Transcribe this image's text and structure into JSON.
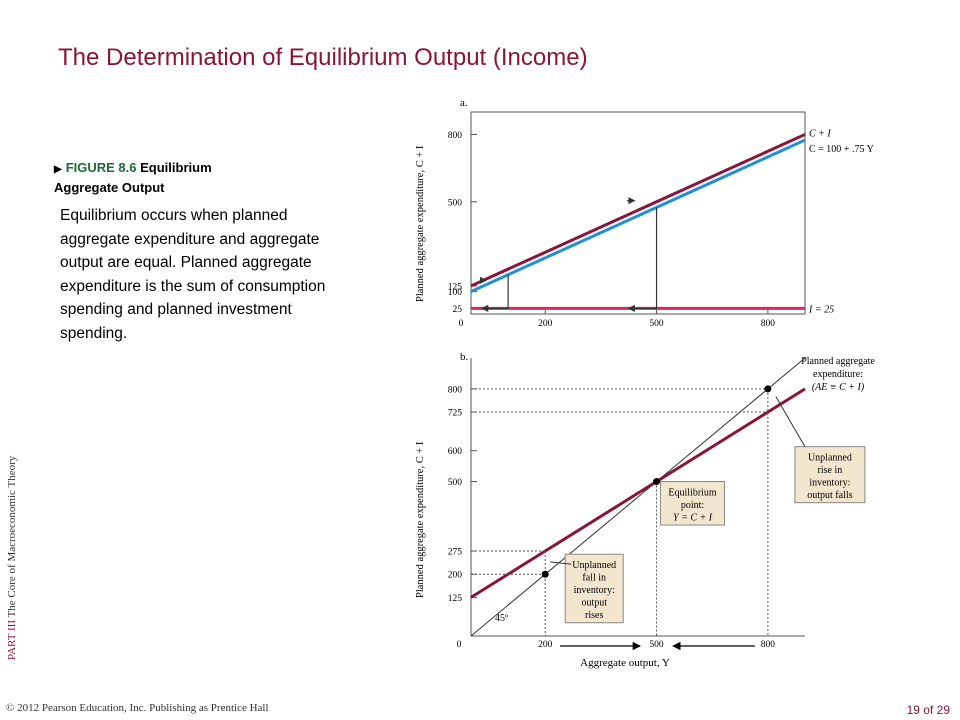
{
  "title": "The Determination of Equilibrium Output (Income)",
  "figure": {
    "arrow": "▶",
    "number": "FIGURE 8.6",
    "name": "Equilibrium",
    "name2": "Aggregate Output"
  },
  "body_text": "Equilibrium occurs when planned aggregate expenditure and aggregate output are equal. Planned aggregate expenditure is the sum of consumption spending and planned investment spending.",
  "sidebar": {
    "part": "PART  III",
    "book": "The Core of Macroeconomic Theory"
  },
  "footer": {
    "copyright": "© 2012 Pearson Education, Inc. Publishing as Prentice Hall",
    "page": "19 of 29"
  },
  "colors": {
    "title": "#8b1538",
    "ci_line": "#8b1538",
    "c_line": "#1f8fd6",
    "i_line": "#e0245e"
  },
  "chart_data": [
    {
      "type": "line",
      "panel_label": "a.",
      "ylabel": "Planned aggregate expenditure, C + I",
      "ylim": [
        0,
        900
      ],
      "xlim": [
        0,
        900
      ],
      "x_ticks": [
        0,
        200,
        500,
        800
      ],
      "y_ticks": [
        "25",
        "100",
        "125",
        "500",
        "800"
      ],
      "x_tick_labels": [
        "0",
        "200",
        "500",
        "800"
      ],
      "series": [
        {
          "name": "C + I",
          "x": [
            0,
            900
          ],
          "y": [
            125,
            800
          ]
        },
        {
          "name": "C = 100 + .75 Y",
          "x": [
            0,
            900
          ],
          "y": [
            100,
            775
          ]
        },
        {
          "name": "I = 25",
          "x": [
            0,
            900
          ],
          "y": [
            25,
            25
          ]
        }
      ]
    },
    {
      "type": "line",
      "panel_label": "b.",
      "ylabel": "Planned aggregate expenditure, C + I",
      "xlabel": "Aggregate output, Y",
      "ylim": [
        0,
        900
      ],
      "xlim": [
        0,
        900
      ],
      "x_ticks": [
        0,
        200,
        500,
        800
      ],
      "y_ticks": [
        "125",
        "200",
        "275",
        "500",
        "600",
        "725",
        "800"
      ],
      "x_tick_labels": [
        "0",
        "200",
        "500",
        "800"
      ],
      "series": [
        {
          "name": "Planned aggregate expenditure: (AE ≡ C + I)",
          "x": [
            0,
            900
          ],
          "y": [
            125,
            800
          ]
        },
        {
          "name": "45º",
          "x": [
            0,
            900
          ],
          "y": [
            0,
            900
          ]
        }
      ],
      "points": [
        {
          "x": 200,
          "y": 200
        },
        {
          "x": 500,
          "y": 500
        },
        {
          "x": 800,
          "y": 800
        }
      ],
      "annotations": {
        "angle": "45º",
        "ae_label1": "Planned aggregate",
        "ae_label2": "expenditure:",
        "ae_label3": "(AE ≡ C + I)",
        "eq_box": [
          "Equilibrium",
          "point:",
          "Y = C + I"
        ],
        "fall_box": [
          "Unplanned",
          "fall in",
          "inventory:",
          "output",
          "rises"
        ],
        "rise_box": [
          "Unplanned",
          "rise in",
          "inventory:",
          "output falls"
        ]
      }
    }
  ]
}
